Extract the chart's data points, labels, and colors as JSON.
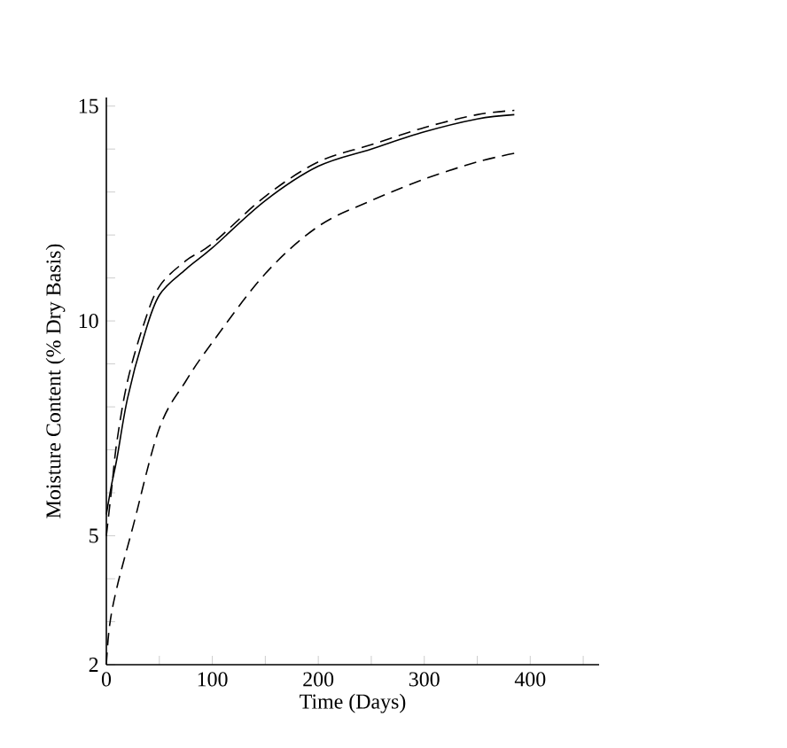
{
  "chart_data": {
    "type": "line",
    "xlabel": "Time (Days)",
    "ylabel": "Moisture Content (% Dry Basis)",
    "xlim": [
      0,
      465
    ],
    "ylim": [
      2,
      15.2
    ],
    "xticks": [
      0,
      {
        "value": 50,
        "label": null
      },
      100,
      {
        "value": 150,
        "label": null
      },
      200,
      {
        "value": 250,
        "label": null
      },
      300,
      {
        "value": 350,
        "label": null
      },
      400,
      {
        "value": 450,
        "label": null
      }
    ],
    "yticks": [
      2,
      {
        "value": 3,
        "label": null
      },
      {
        "value": 4,
        "label": null
      },
      5,
      {
        "value": 6,
        "label": null
      },
      {
        "value": 7,
        "label": null
      },
      {
        "value": 8,
        "label": null
      },
      {
        "value": 9,
        "label": null
      },
      10,
      {
        "value": 11,
        "label": null
      },
      {
        "value": 12,
        "label": null
      },
      {
        "value": 13,
        "label": null
      },
      {
        "value": 14,
        "label": null
      },
      15
    ],
    "series": [
      {
        "color": "#000000",
        "line_style": "solid",
        "x": [
          0,
          5,
          10,
          20,
          35,
          50,
          75,
          100,
          150,
          200,
          250,
          300,
          350,
          385
        ],
        "values": [
          5.5,
          6.2,
          6.8,
          8.2,
          9.6,
          10.6,
          11.2,
          11.7,
          12.8,
          13.6,
          14.0,
          14.4,
          14.7,
          14.8
        ]
      },
      {
        "color": "#000000",
        "line_style": "dashed",
        "x": [
          0,
          5,
          10,
          20,
          35,
          50,
          75,
          100,
          150,
          200,
          250,
          300,
          350,
          385
        ],
        "values": [
          5.0,
          6.1,
          7.2,
          8.6,
          9.9,
          10.8,
          11.4,
          11.8,
          12.9,
          13.7,
          14.1,
          14.5,
          14.8,
          14.9
        ]
      },
      {
        "color": "#000000",
        "line_style": "dashed",
        "x": [
          0,
          3,
          10,
          25,
          50,
          75,
          100,
          150,
          200,
          250,
          300,
          350,
          385
        ],
        "values": [
          2.0,
          2.9,
          3.8,
          5.2,
          7.5,
          8.6,
          9.5,
          11.1,
          12.2,
          12.8,
          13.3,
          13.7,
          13.9
        ]
      }
    ]
  }
}
